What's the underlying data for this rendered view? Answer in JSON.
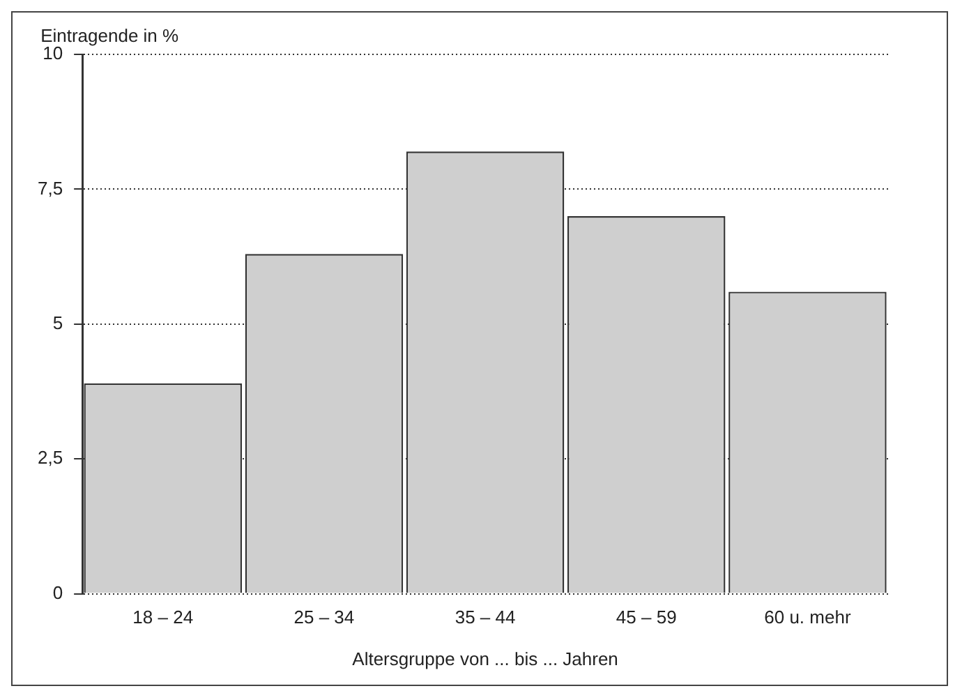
{
  "chart_data": {
    "type": "bar",
    "categories": [
      "18 – 24",
      "25 – 34",
      "35 – 44",
      "45 – 59",
      "60 u. mehr"
    ],
    "values": [
      3.9,
      6.3,
      8.2,
      7.0,
      5.6
    ],
    "color": "#cfcfcf",
    "ylabel": "Eintragende in %",
    "xlabel": "Altersgruppe von ... bis ... Jahren",
    "ylim": [
      0,
      10
    ],
    "yticks": [
      0,
      {
        "value": 2.5,
        "label": "2,5"
      },
      5,
      {
        "value": 7.5,
        "label": "7,5"
      },
      10
    ],
    "grid": "y"
  }
}
